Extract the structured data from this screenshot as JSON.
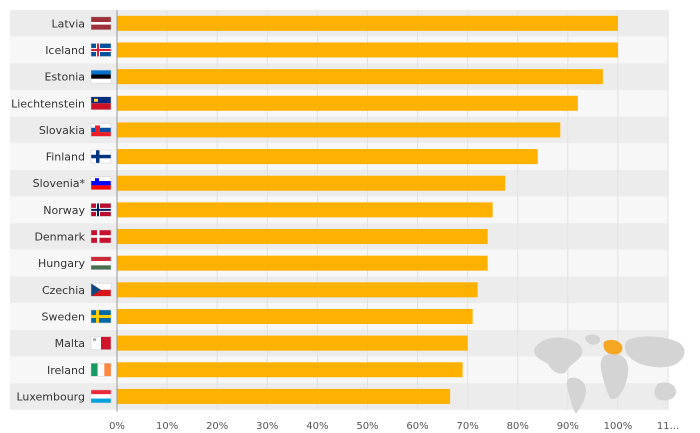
{
  "chart_data": {
    "type": "bar",
    "orientation": "horizontal",
    "categories": [
      "Latvia",
      "Iceland",
      "Estonia",
      "Liechtenstein",
      "Slovakia",
      "Finland",
      "Slovenia*",
      "Norway",
      "Denmark",
      "Hungary",
      "Czechia",
      "Sweden",
      "Malta",
      "Ireland",
      "Luxembourg"
    ],
    "values": [
      100,
      100,
      97,
      92,
      88.5,
      84,
      77.5,
      75,
      74,
      74,
      72,
      71,
      70,
      69,
      66.5
    ],
    "xlim": [
      0,
      110
    ],
    "xticks": [
      "0%",
      "10%",
      "20%",
      "30%",
      "40%",
      "50%",
      "60%",
      "70%",
      "80%",
      "90%",
      "100%",
      "11..."
    ],
    "grid": true,
    "bar_color": "#ffb100",
    "row_band_color": "#ececec",
    "flags": [
      "latvia-flag-icon",
      "iceland-flag-icon",
      "estonia-flag-icon",
      "liechtenstein-flag-icon",
      "slovakia-flag-icon",
      "finland-flag-icon",
      "slovenia-flag-icon",
      "norway-flag-icon",
      "denmark-flag-icon",
      "hungary-flag-icon",
      "czechia-flag-icon",
      "sweden-flag-icon",
      "malta-flag-icon",
      "ireland-flag-icon",
      "luxembourg-flag-icon"
    ],
    "inset": "world-map-icon"
  }
}
